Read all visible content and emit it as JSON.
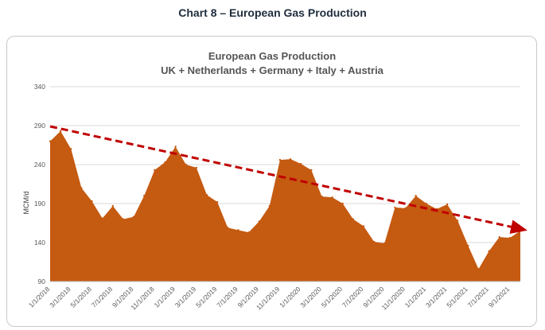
{
  "caption": "Chart 8 – European Gas Production",
  "chart_data": {
    "type": "area",
    "title": "European Gas Production",
    "subtitle": "UK + Netherlands + Germany + Italy + Austria",
    "xlabel": "",
    "ylabel": "MCM/d",
    "ylim": [
      90,
      340
    ],
    "yticks": [
      90,
      140,
      190,
      240,
      290,
      340
    ],
    "grid": true,
    "fill_color": "#c55a11",
    "trend_color": "#c00000",
    "x": [
      "1/1/2018",
      "2/1/2018",
      "3/1/2018",
      "4/1/2018",
      "5/1/2018",
      "6/1/2018",
      "7/1/2018",
      "8/1/2018",
      "9/1/2018",
      "10/1/2018",
      "11/1/2018",
      "12/1/2018",
      "1/1/2019",
      "2/1/2019",
      "3/1/2019",
      "4/1/2019",
      "5/1/2019",
      "6/1/2019",
      "7/1/2019",
      "8/1/2019",
      "9/1/2019",
      "10/1/2019",
      "11/1/2019",
      "12/1/2019",
      "1/1/2020",
      "2/1/2020",
      "3/1/2020",
      "4/1/2020",
      "5/1/2020",
      "6/1/2020",
      "7/1/2020",
      "8/1/2020",
      "9/1/2020",
      "10/1/2020",
      "11/1/2020",
      "12/1/2020",
      "1/1/2021",
      "2/1/2021",
      "3/1/2021",
      "4/1/2021",
      "5/1/2021",
      "6/1/2021",
      "7/1/2021",
      "8/1/2021",
      "9/1/2021",
      "10/1/2021"
    ],
    "xtick_labels": [
      "1/1/2018",
      "3/1/2018",
      "5/1/2018",
      "7/1/2018",
      "9/1/2018",
      "11/1/2018",
      "1/1/2019",
      "3/1/2019",
      "5/1/2019",
      "7/1/2019",
      "9/1/2019",
      "11/1/2019",
      "1/1/2020",
      "3/1/2020",
      "5/1/2020",
      "7/1/2020",
      "9/1/2020",
      "11/1/2020",
      "1/1/2021",
      "3/1/2021",
      "5/1/2021",
      "7/1/2021",
      "9/1/2021"
    ],
    "series": [
      {
        "name": "European Gas Production",
        "values": [
          270,
          283,
          260,
          210,
          193,
          171,
          187,
          170,
          173,
          200,
          233,
          243,
          263,
          240,
          236,
          201,
          192,
          159,
          156,
          153,
          167,
          187,
          246,
          247,
          241,
          233,
          199,
          198,
          190,
          170,
          161,
          141,
          139,
          185,
          184,
          200,
          190,
          183,
          189,
          168,
          136,
          106,
          129,
          147,
          146,
          155
        ]
      }
    ],
    "trendline": {
      "x": [
        "1/1/2018",
        "10/1/2021"
      ],
      "y": [
        289,
        155
      ]
    }
  }
}
